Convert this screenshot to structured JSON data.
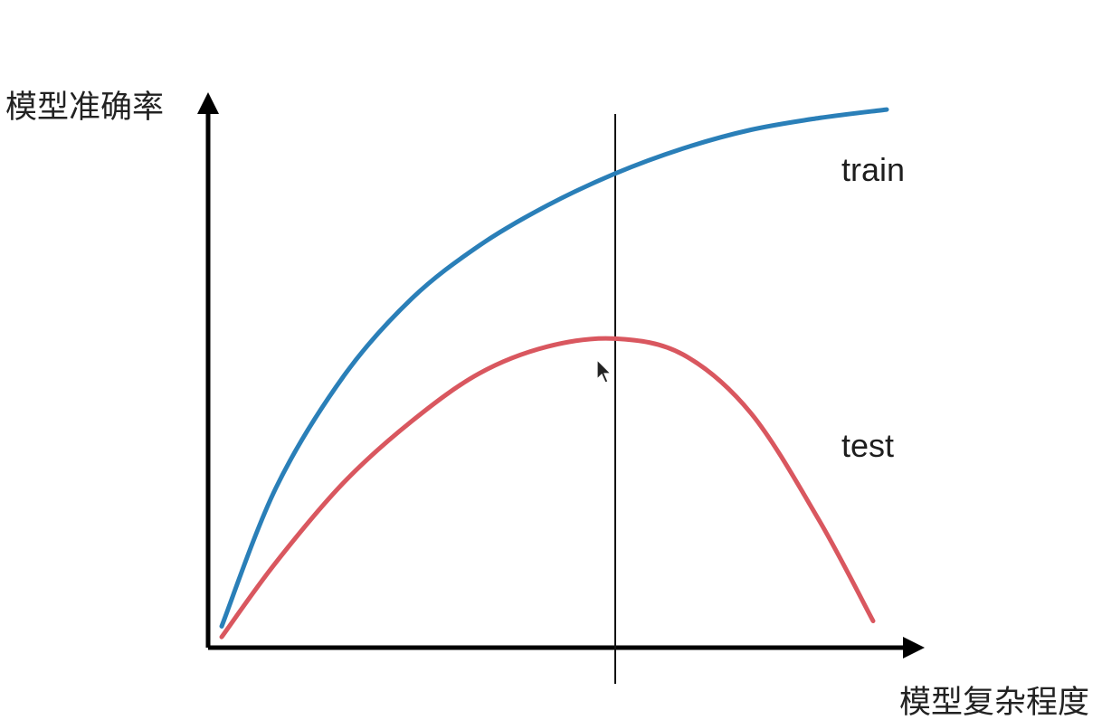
{
  "chart_data": {
    "type": "line",
    "xlabel": "模型复杂程度",
    "ylabel": "模型准确率",
    "xlim": [
      0,
      100
    ],
    "ylim": [
      0,
      100
    ],
    "grid": false,
    "x_ticks": [],
    "y_ticks": [],
    "marker_x": 60,
    "series": [
      {
        "name": "train",
        "color": "#2a7fb8",
        "points": [
          [
            2,
            4
          ],
          [
            10,
            30
          ],
          [
            20,
            51
          ],
          [
            30,
            65.5
          ],
          [
            40,
            75.5
          ],
          [
            50,
            83
          ],
          [
            60,
            89
          ],
          [
            70,
            93.7
          ],
          [
            80,
            97.2
          ],
          [
            90,
            99.4
          ],
          [
            100,
            101
          ]
        ]
      },
      {
        "name": "test",
        "color": "#d9575f",
        "points": [
          [
            2,
            2
          ],
          [
            10,
            16
          ],
          [
            20,
            31
          ],
          [
            30,
            42.5
          ],
          [
            40,
            51.5
          ],
          [
            50,
            56.5
          ],
          [
            60,
            58
          ],
          [
            70,
            55
          ],
          [
            80,
            44
          ],
          [
            90,
            24
          ],
          [
            98,
            5
          ]
        ]
      }
    ]
  }
}
